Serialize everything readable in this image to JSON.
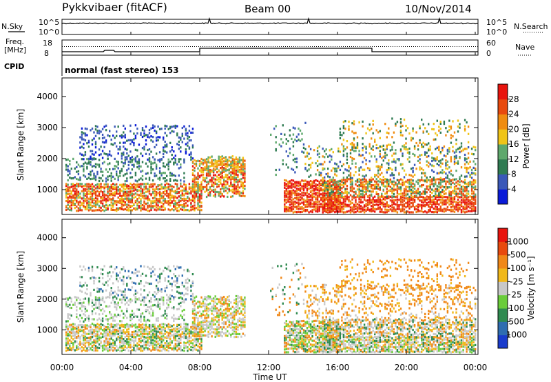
{
  "header": {
    "title": "Pykkvibaer (fitACF)",
    "beam": "Beam 00",
    "date": "10/Nov/2014"
  },
  "nsky_panel": {
    "left_label": "N.Sky",
    "right_label": "N.Search",
    "left_top": "10^5",
    "left_bottom": "10^0",
    "right_top": "10^5",
    "right_bottom": "10^0"
  },
  "freq_panel": {
    "left_label_line1": "Freq.",
    "left_label_line2": "[MHz]",
    "left_top": "18",
    "left_bottom": "8",
    "right_label": "Nave",
    "right_top": "60",
    "right_bottom": "0"
  },
  "cpid_panel": {
    "label": "CPID",
    "text": "normal (fast stereo) 153"
  },
  "chart_data": [
    {
      "type": "heatmap",
      "quantity": "power",
      "ylabel": "Slant Range [km]",
      "yticks": [
        "1000",
        "2000",
        "3000",
        "4000"
      ],
      "ylim": [
        200,
        4600
      ],
      "colorbar_label": "Power [dB]",
      "colorbar_ticks": [
        "4",
        "8",
        "12",
        "16",
        "20",
        "24",
        "28"
      ],
      "colorbar_colors": [
        "#0a1bd8",
        "#3a58b8",
        "#2f7b52",
        "#5ea86c",
        "#f0c418",
        "#f08c10",
        "#e84a0e",
        "#e8140e"
      ]
    },
    {
      "type": "heatmap",
      "quantity": "velocity",
      "ylabel": "Slant Range [km]",
      "yticks": [
        "1000",
        "2000",
        "3000",
        "4000"
      ],
      "ylim": [
        200,
        4600
      ],
      "colorbar_label": "Velocity [m s⁻¹]",
      "colorbar_ticks": [
        "1000",
        "500",
        "100",
        "25",
        "-25",
        "-100",
        "-500",
        "-1000"
      ],
      "colorbar_colors": [
        "#1a3ccc",
        "#2f6db0",
        "#2f8a50",
        "#6acc3a",
        "#c8c8c8",
        "#f0b81a",
        "#f08818",
        "#e84a0e",
        "#e8140e"
      ]
    }
  ],
  "xaxis": {
    "label": "Time UT",
    "ticks": [
      "00:00",
      "04:00",
      "08:00",
      "12:00",
      "16:00",
      "20:00",
      "00:00"
    ]
  }
}
